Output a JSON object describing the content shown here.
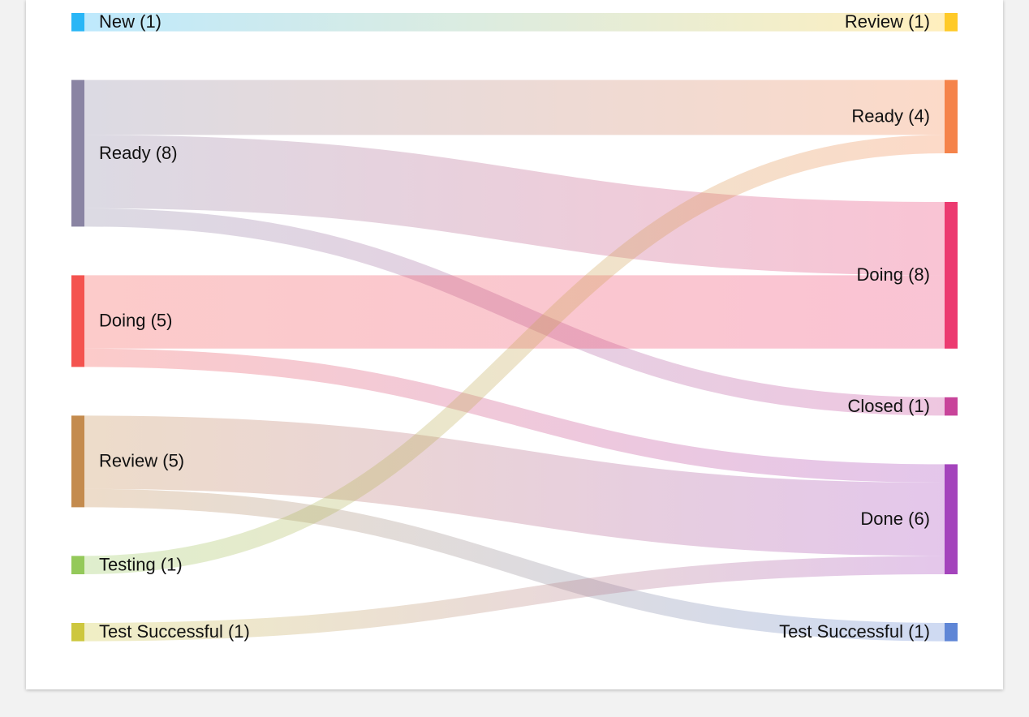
{
  "chart_data": {
    "type": "sankey",
    "sources": [
      {
        "id": "s_new",
        "label": "New (1)",
        "value": 1,
        "color": "#29b6f6"
      },
      {
        "id": "s_ready",
        "label": "Ready (8)",
        "value": 8,
        "color": "#8a84a3"
      },
      {
        "id": "s_doing",
        "label": "Doing (5)",
        "value": 5,
        "color": "#f4534f"
      },
      {
        "id": "s_review",
        "label": "Review (5)",
        "value": 5,
        "color": "#c48b4e"
      },
      {
        "id": "s_testing",
        "label": "Testing (1)",
        "value": 1,
        "color": "#94c95a"
      },
      {
        "id": "s_testsucc",
        "label": "Test Successful (1)",
        "value": 1,
        "color": "#cdc73e"
      }
    ],
    "targets": [
      {
        "id": "t_review",
        "label": "Review (1)",
        "value": 1,
        "color": "#ffca28"
      },
      {
        "id": "t_ready",
        "label": "Ready (4)",
        "value": 4,
        "color": "#f5834a"
      },
      {
        "id": "t_doing",
        "label": "Doing (8)",
        "value": 8,
        "color": "#ec3a70"
      },
      {
        "id": "t_closed",
        "label": "Closed (1)",
        "value": 1,
        "color": "#c8449a"
      },
      {
        "id": "t_done",
        "label": "Done (6)",
        "value": 6,
        "color": "#a444bc"
      },
      {
        "id": "t_testsucc",
        "label": "Test Successful (1)",
        "value": 1,
        "color": "#5f86d6"
      }
    ],
    "links": [
      {
        "source": "s_new",
        "target": "t_review",
        "value": 1
      },
      {
        "source": "s_ready",
        "target": "t_ready",
        "value": 3
      },
      {
        "source": "s_ready",
        "target": "t_doing",
        "value": 4
      },
      {
        "source": "s_ready",
        "target": "t_closed",
        "value": 1
      },
      {
        "source": "s_doing",
        "target": "t_doing",
        "value": 4
      },
      {
        "source": "s_doing",
        "target": "t_done",
        "value": 1
      },
      {
        "source": "s_review",
        "target": "t_done",
        "value": 4
      },
      {
        "source": "s_review",
        "target": "t_testsucc",
        "value": 1
      },
      {
        "source": "s_testing",
        "target": "t_ready",
        "value": 1
      },
      {
        "source": "s_testsucc",
        "target": "t_done",
        "value": 1
      }
    ]
  }
}
